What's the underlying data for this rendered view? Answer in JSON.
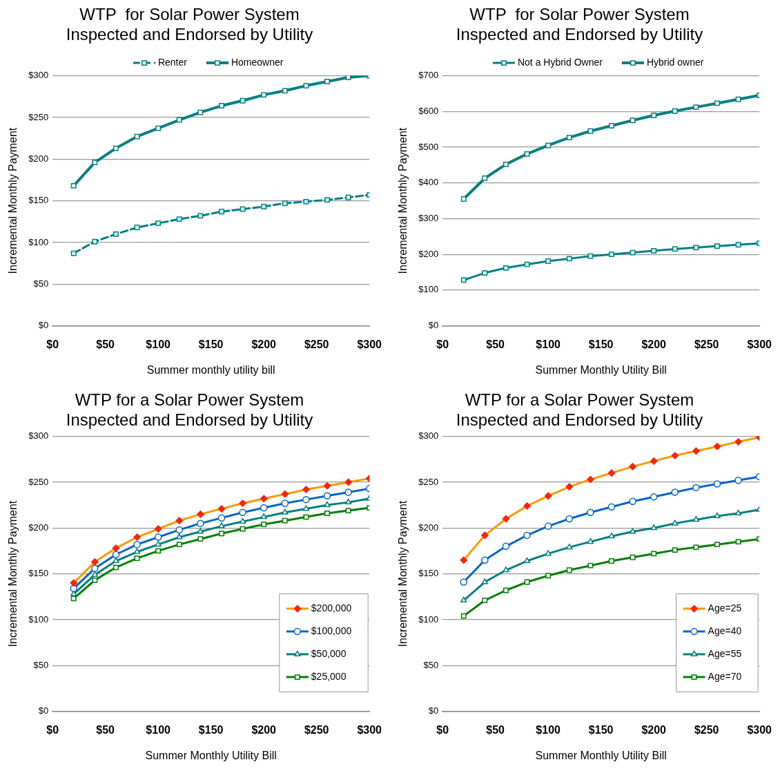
{
  "chart_data": [
    {
      "type": "line",
      "title": "WTP  for Solar Power System\nInspected and Endorsed by Utility",
      "xlabel": "Summer monthly utility bill",
      "ylabel": "Incremental Monthly Payment",
      "x": [
        20,
        40,
        60,
        80,
        100,
        120,
        140,
        160,
        180,
        200,
        220,
        240,
        260,
        280,
        300
      ],
      "xlim": [
        0,
        300
      ],
      "xticks": [
        {
          "value": 0,
          "label": "$0"
        },
        {
          "value": 50,
          "label": "$50"
        },
        {
          "value": 100,
          "label": "$100"
        },
        {
          "value": 150,
          "label": "$150"
        },
        {
          "value": 200,
          "label": "$200"
        },
        {
          "value": 250,
          "label": "$250"
        },
        {
          "value": 300,
          "label": "$300"
        }
      ],
      "ylim": [
        0,
        300
      ],
      "yticks": [
        {
          "value": 0,
          "label": "$0"
        },
        {
          "value": 50,
          "label": "$50"
        },
        {
          "value": 100,
          "label": "$100"
        },
        {
          "value": 150,
          "label": "$150"
        },
        {
          "value": 200,
          "label": "$200"
        },
        {
          "value": 250,
          "label": "$250"
        },
        {
          "value": 300,
          "label": "$300"
        }
      ],
      "grid": "y",
      "legend": "top",
      "marker": "square",
      "series": [
        {
          "name": "Renter",
          "color": "#008080",
          "line_style": "dashed",
          "values": [
            87,
            101,
            110,
            118,
            123,
            128,
            132,
            137,
            140,
            143,
            147,
            149,
            151,
            154,
            157
          ]
        },
        {
          "name": "Homeowner",
          "color": "#008080",
          "line_style": "solid",
          "values": [
            168,
            196,
            213,
            227,
            237,
            247,
            256,
            264,
            270,
            277,
            282,
            288,
            293,
            298,
            300
          ]
        }
      ]
    },
    {
      "type": "line",
      "title": "WTP  for Solar Power System\nInspected and Endorsed by Utility",
      "xlabel": "Summer Monthly Utility Bill",
      "ylabel": "Incremental Monthly Payment",
      "x": [
        20,
        40,
        60,
        80,
        100,
        120,
        140,
        160,
        180,
        200,
        220,
        240,
        260,
        280,
        300
      ],
      "xlim": [
        0,
        300
      ],
      "xticks": [
        {
          "value": 0,
          "label": "$0"
        },
        {
          "value": 50,
          "label": "$50"
        },
        {
          "value": 100,
          "label": "$100"
        },
        {
          "value": 150,
          "label": "$150"
        },
        {
          "value": 200,
          "label": "$200"
        },
        {
          "value": 250,
          "label": "$250"
        },
        {
          "value": 300,
          "label": "$300"
        }
      ],
      "ylim": [
        0,
        700
      ],
      "yticks": [
        {
          "value": 0,
          "label": "$0"
        },
        {
          "value": 100,
          "label": "$100"
        },
        {
          "value": 200,
          "label": "$200"
        },
        {
          "value": 300,
          "label": "$300"
        },
        {
          "value": 400,
          "label": "$400"
        },
        {
          "value": 500,
          "label": "$500"
        },
        {
          "value": 600,
          "label": "$600"
        },
        {
          "value": 700,
          "label": "$700"
        }
      ],
      "grid": "y",
      "legend": "top",
      "marker": "square",
      "series": [
        {
          "name": "Not a Hybrid Owner",
          "color": "#008080",
          "line_style": "solid",
          "values": [
            128,
            148,
            162,
            172,
            181,
            188,
            195,
            200,
            205,
            210,
            215,
            219,
            223,
            227,
            231
          ]
        },
        {
          "name": "Hybrid owner",
          "color": "#008080",
          "line_style": "solid",
          "values": [
            355,
            413,
            452,
            481,
            505,
            527,
            545,
            560,
            575,
            589,
            601,
            612,
            623,
            634,
            645
          ]
        }
      ]
    },
    {
      "type": "line",
      "title": "WTP for a Solar Power System\nInspected and Endorsed by Utility",
      "xlabel": "Summer Monthly Utility Bill",
      "ylabel": "Incremental Monthly Payment",
      "x": [
        20,
        40,
        60,
        80,
        100,
        120,
        140,
        160,
        180,
        200,
        220,
        240,
        260,
        280,
        300
      ],
      "xlim": [
        0,
        300
      ],
      "xticks": [
        {
          "value": 0,
          "label": "$0"
        },
        {
          "value": 50,
          "label": "$50"
        },
        {
          "value": 100,
          "label": "$100"
        },
        {
          "value": 150,
          "label": "$150"
        },
        {
          "value": 200,
          "label": "$200"
        },
        {
          "value": 250,
          "label": "$250"
        },
        {
          "value": 300,
          "label": "$300"
        }
      ],
      "ylim": [
        0,
        300
      ],
      "yticks": [
        {
          "value": 0,
          "label": "$0"
        },
        {
          "value": 50,
          "label": "$50"
        },
        {
          "value": 100,
          "label": "$100"
        },
        {
          "value": 150,
          "label": "$150"
        },
        {
          "value": 200,
          "label": "$200"
        },
        {
          "value": 250,
          "label": "$250"
        },
        {
          "value": 300,
          "label": "$300"
        }
      ],
      "grid": "y",
      "legend": "bottom right",
      "series": [
        {
          "name": "$200,000",
          "color": "#ff9900",
          "marker": "diamond",
          "values": [
            140,
            163,
            178,
            190,
            199,
            208,
            215,
            221,
            227,
            232,
            237,
            242,
            246,
            250,
            254
          ]
        },
        {
          "name": "$100,000",
          "color": "#0066cc",
          "marker": "circle",
          "values": [
            134,
            156,
            171,
            182,
            190,
            198,
            205,
            211,
            217,
            222,
            227,
            231,
            235,
            239,
            243
          ]
        },
        {
          "name": "$50,000",
          "color": "#008080",
          "marker": "triangle",
          "values": [
            128,
            149,
            164,
            174,
            182,
            190,
            196,
            202,
            207,
            212,
            217,
            221,
            225,
            228,
            232
          ]
        },
        {
          "name": "$25,000",
          "color": "#008000",
          "marker": "square",
          "values": [
            123,
            143,
            157,
            167,
            175,
            182,
            188,
            194,
            199,
            204,
            208,
            212,
            216,
            219,
            222
          ]
        }
      ]
    },
    {
      "type": "line",
      "title": "WTP for a Solar Power System\nInspected and Endorsed by Utility",
      "xlabel": "Summer Monthly Utility Bill",
      "ylabel": "Incremental Monthly Payment",
      "x": [
        20,
        40,
        60,
        80,
        100,
        120,
        140,
        160,
        180,
        200,
        220,
        240,
        260,
        280,
        300
      ],
      "xlim": [
        0,
        300
      ],
      "xticks": [
        {
          "value": 0,
          "label": "$0"
        },
        {
          "value": 50,
          "label": "$50"
        },
        {
          "value": 100,
          "label": "$100"
        },
        {
          "value": 150,
          "label": "$150"
        },
        {
          "value": 200,
          "label": "$200"
        },
        {
          "value": 250,
          "label": "$250"
        },
        {
          "value": 300,
          "label": "$300"
        }
      ],
      "ylim": [
        0,
        300
      ],
      "yticks": [
        {
          "value": 0,
          "label": "$0"
        },
        {
          "value": 50,
          "label": "$50"
        },
        {
          "value": 100,
          "label": "$100"
        },
        {
          "value": 150,
          "label": "$150"
        },
        {
          "value": 200,
          "label": "$200"
        },
        {
          "value": 250,
          "label": "$250"
        },
        {
          "value": 300,
          "label": "$300"
        }
      ],
      "grid": "y",
      "legend": "bottom right",
      "series": [
        {
          "name": "Age=25",
          "color": "#ff9900",
          "marker": "diamond",
          "values": [
            165,
            192,
            210,
            224,
            235,
            245,
            253,
            260,
            267,
            273,
            279,
            284,
            289,
            294,
            299
          ]
        },
        {
          "name": "Age=40",
          "color": "#0066cc",
          "marker": "circle",
          "values": [
            141,
            165,
            180,
            192,
            202,
            210,
            217,
            223,
            229,
            234,
            239,
            244,
            248,
            252,
            256
          ]
        },
        {
          "name": "Age=55",
          "color": "#008080",
          "marker": "triangle",
          "values": [
            121,
            141,
            154,
            164,
            172,
            179,
            185,
            191,
            196,
            200,
            205,
            209,
            213,
            216,
            220
          ]
        },
        {
          "name": "Age=70",
          "color": "#008000",
          "marker": "square",
          "values": [
            104,
            121,
            132,
            141,
            148,
            154,
            159,
            164,
            168,
            172,
            176,
            179,
            182,
            185,
            188
          ]
        }
      ]
    }
  ]
}
